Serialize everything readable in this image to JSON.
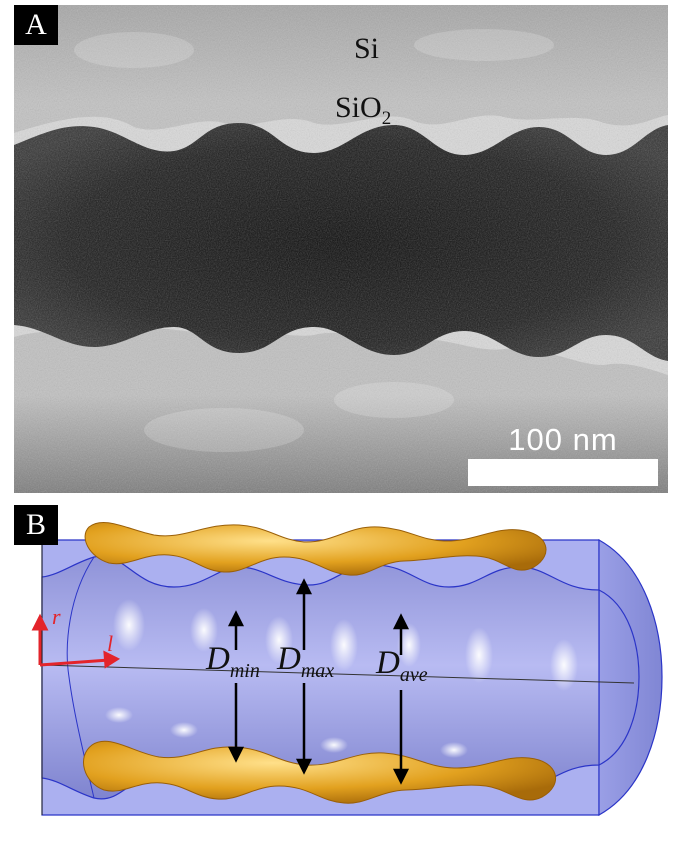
{
  "figure": {
    "panel_a": {
      "label": "A",
      "material_top": "Si",
      "material_oxide": "SiO",
      "oxide_subscript": "2",
      "scale_bar_text": "100 nm"
    },
    "panel_b": {
      "label": "B",
      "axis_r": "r",
      "axis_l": "l",
      "d_min_main": "D",
      "d_min_sub": "min",
      "d_max_main": "D",
      "d_max_sub": "max",
      "d_ave_main": "D",
      "d_ave_sub": "ave"
    },
    "colors": {
      "tube": "#a9aef0",
      "tube_edge": "#2b35c8",
      "electrode": "#e7a92a",
      "axis": "#e3242b"
    }
  }
}
